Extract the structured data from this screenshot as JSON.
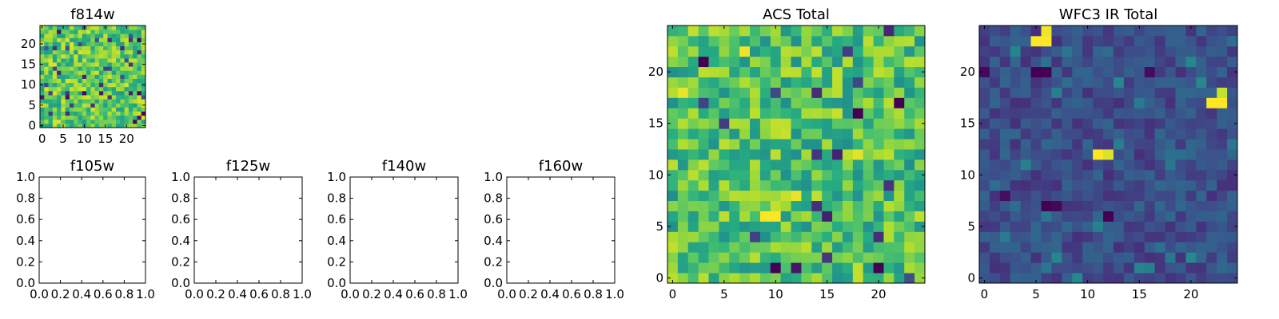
{
  "chart_data": [
    {
      "id": "f814w",
      "type": "heatmap",
      "title": "f814w",
      "xlabel": "",
      "ylabel": "",
      "xlim": [
        -0.5,
        24.5
      ],
      "ylim": [
        -0.5,
        24.5
      ],
      "xticks": [
        0,
        5,
        10,
        15,
        20
      ],
      "yticks": [
        0,
        5,
        10,
        15,
        20
      ],
      "colormap": "viridis",
      "grid_shape": [
        25,
        25
      ],
      "noise": {
        "seed": 814,
        "background": [
          0.55,
          0.95
        ],
        "outlier_rate": 0.04,
        "outlier_range": [
          0.0,
          0.3
        ]
      },
      "hotspots": []
    },
    {
      "id": "f105w",
      "type": "empty",
      "title": "f105w",
      "xlim": [
        0,
        1
      ],
      "ylim": [
        0,
        1
      ],
      "xtick_labels": [
        "0.0",
        "0.2",
        "0.4",
        "0.6",
        "0.8",
        "1.0"
      ],
      "ytick_labels": [
        "0.0",
        "0.2",
        "0.4",
        "0.6",
        "0.8",
        "1.0"
      ]
    },
    {
      "id": "f125w",
      "type": "empty",
      "title": "f125w",
      "xlim": [
        0,
        1
      ],
      "ylim": [
        0,
        1
      ],
      "xtick_labels": [
        "0.0",
        "0.2",
        "0.4",
        "0.6",
        "0.8",
        "1.0"
      ],
      "ytick_labels": [
        "0.0",
        "0.2",
        "0.4",
        "0.6",
        "0.8",
        "1.0"
      ]
    },
    {
      "id": "f140w",
      "type": "empty",
      "title": "f140w",
      "xlim": [
        0,
        1
      ],
      "ylim": [
        0,
        1
      ],
      "xtick_labels": [
        "0.0",
        "0.2",
        "0.4",
        "0.6",
        "0.8",
        "1.0"
      ],
      "ytick_labels": [
        "0.0",
        "0.2",
        "0.4",
        "0.6",
        "0.8",
        "1.0"
      ]
    },
    {
      "id": "f160w",
      "type": "empty",
      "title": "f160w",
      "xlim": [
        0,
        1
      ],
      "ylim": [
        0,
        1
      ],
      "xtick_labels": [
        "0.0",
        "0.2",
        "0.4",
        "0.6",
        "0.8",
        "1.0"
      ],
      "ytick_labels": [
        "0.0",
        "0.2",
        "0.4",
        "0.6",
        "0.8",
        "1.0"
      ]
    },
    {
      "id": "acs-total",
      "type": "heatmap",
      "title": "ACS Total",
      "xlim": [
        -0.5,
        24.5
      ],
      "ylim": [
        -0.5,
        24.5
      ],
      "xticks": [
        0,
        5,
        10,
        15,
        20
      ],
      "yticks": [
        0,
        5,
        10,
        15,
        20
      ],
      "colormap": "viridis",
      "grid_shape": [
        25,
        25
      ],
      "noise": {
        "seed": 2718,
        "background": [
          0.5,
          0.92
        ],
        "outlier_rate": 0.035,
        "outlier_range": [
          0.0,
          0.25
        ]
      },
      "hotspots": [
        {
          "col": 9,
          "row": 6,
          "value": 1.0
        },
        {
          "col": 10,
          "row": 6,
          "value": 1.0
        },
        {
          "col": 1,
          "row": 18,
          "value": 0.97
        },
        {
          "col": 7,
          "row": 22,
          "value": 0.98
        },
        {
          "col": 18,
          "row": 12,
          "value": 0.96
        },
        {
          "col": 12,
          "row": 8,
          "value": 0.97
        },
        {
          "col": 3,
          "row": 21,
          "value": 0.0
        },
        {
          "col": 18,
          "row": 16,
          "value": 0.0
        },
        {
          "col": 22,
          "row": 17,
          "value": 0.0
        },
        {
          "col": 10,
          "row": 1,
          "value": 0.0
        },
        {
          "col": 20,
          "row": 1,
          "value": 0.0
        }
      ]
    },
    {
      "id": "wfc3-ir-total",
      "type": "heatmap",
      "title": "WFC3 IR Total",
      "xlim": [
        -0.5,
        24.5
      ],
      "ylim": [
        -0.5,
        24.5
      ],
      "xticks": [
        0,
        5,
        10,
        15,
        20
      ],
      "yticks": [
        0,
        5,
        10,
        15,
        20
      ],
      "colormap": "viridis",
      "grid_shape": [
        25,
        25
      ],
      "noise": {
        "seed": 3141,
        "background": [
          0.14,
          0.34
        ],
        "outlier_rate": 0.05,
        "outlier_range": [
          0.36,
          0.48
        ]
      },
      "hotspots": [
        {
          "col": 5,
          "row": 23,
          "value": 1.0
        },
        {
          "col": 6,
          "row": 23,
          "value": 1.0
        },
        {
          "col": 6,
          "row": 24,
          "value": 0.98
        },
        {
          "col": 11,
          "row": 12,
          "value": 1.0
        },
        {
          "col": 12,
          "row": 12,
          "value": 0.95
        },
        {
          "col": 22,
          "row": 17,
          "value": 1.0
        },
        {
          "col": 23,
          "row": 17,
          "value": 1.0
        },
        {
          "col": 23,
          "row": 18,
          "value": 0.92
        },
        {
          "col": 0,
          "row": 20,
          "value": 0.02
        },
        {
          "col": 5,
          "row": 20,
          "value": 0.0
        },
        {
          "col": 6,
          "row": 20,
          "value": 0.0
        },
        {
          "col": 16,
          "row": 20,
          "value": 0.03
        },
        {
          "col": 6,
          "row": 7,
          "value": 0.0
        },
        {
          "col": 7,
          "row": 7,
          "value": 0.02
        },
        {
          "col": 2,
          "row": 8,
          "value": 0.04
        },
        {
          "col": 12,
          "row": 6,
          "value": 0.0
        }
      ]
    }
  ]
}
